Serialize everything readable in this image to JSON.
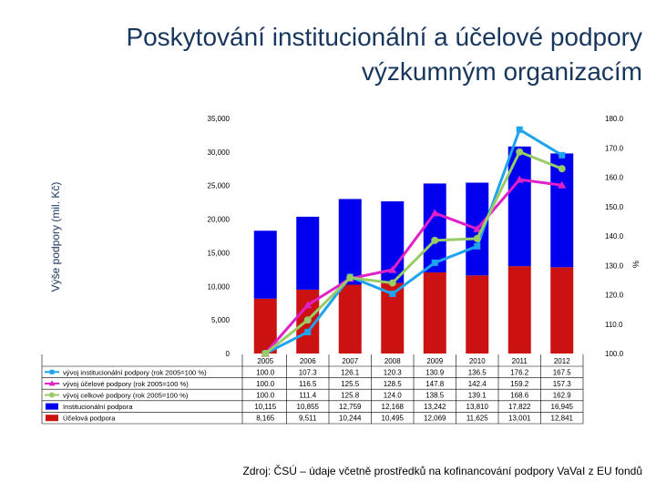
{
  "title": {
    "line1": "Poskytování institucionální a účelové podpory",
    "line2": "výzkumným organizacím"
  },
  "source": "Zdroj: ČSÚ – údaje včetně prostředků na kofinancování podpory VaVaI z EU fondů",
  "colors": {
    "institucionalni_bar": "#0000ee",
    "ucelova_bar": "#cc1111",
    "vyvoj_institucionalni": "#1fa3ee",
    "vyvoj_ucelove": "#e020c8",
    "vyvoj_celkove": "#99cc66"
  },
  "chart_data": {
    "type": "bar",
    "stacked": true,
    "categories": [
      "2005",
      "2006",
      "2007",
      "2008",
      "2009",
      "2010",
      "2011",
      "2012"
    ],
    "ylabel": "Výše podpory (mil. Kč)",
    "y2label": "%",
    "ylim": [
      0,
      35000
    ],
    "y2lim": [
      100,
      180
    ],
    "yticks": [
      "0",
      "5,000",
      "10,000",
      "15,000",
      "20,000",
      "25,000",
      "30,000",
      "35,000"
    ],
    "y2ticks": [
      "100.0",
      "110.0",
      "120.0",
      "130.0",
      "140.0",
      "150.0",
      "160.0",
      "170.0",
      "180.0"
    ],
    "grid": false,
    "legend": "data table below plot",
    "bar_series": [
      {
        "name": "Účelová podpora",
        "color": "#cc1111",
        "labels": [
          "8,165",
          "9,511",
          "10,244",
          "10,495",
          "12,069",
          "11,625",
          "13,001",
          "12,841"
        ],
        "values": [
          8165,
          9511,
          10244,
          10495,
          12069,
          11625,
          13001,
          12841
        ]
      },
      {
        "name": "Institucionální podpora",
        "color": "#0000ee",
        "labels": [
          "10,115",
          "10,855",
          "12,759",
          "12,168",
          "13,242",
          "13,810",
          "17,822",
          "16,945"
        ],
        "values": [
          10115,
          10855,
          12759,
          12168,
          13242,
          13810,
          17822,
          16945
        ]
      }
    ],
    "line_series": [
      {
        "name": "vývoj institucionální podpory (rok 2005=100 %)",
        "color": "#1fa3ee",
        "marker": "square",
        "labels": [
          "100.0",
          "107.3",
          "126.1",
          "120.3",
          "130.9",
          "136.5",
          "176.2",
          "167.5"
        ],
        "values": [
          100.0,
          107.3,
          126.1,
          120.3,
          130.9,
          136.5,
          176.2,
          167.5
        ]
      },
      {
        "name": "vývoj účelové podpory (rok 2005=100 %)",
        "color": "#e020c8",
        "marker": "triangle",
        "labels": [
          "100.0",
          "116.5",
          "125.5",
          "128.5",
          "147.8",
          "142.4",
          "159.2",
          "157.3"
        ],
        "values": [
          100.0,
          116.5,
          125.5,
          128.5,
          147.8,
          142.4,
          159.2,
          157.3
        ]
      },
      {
        "name": "vývoj celkové podpory (rok 2005=100 %)",
        "color": "#99cc66",
        "marker": "circle",
        "labels": [
          "100.0",
          "111.4",
          "125.8",
          "124.0",
          "138.5",
          "139.1",
          "168.6",
          "162.9"
        ],
        "values": [
          100.0,
          111.4,
          125.8,
          124.0,
          138.5,
          139.1,
          168.6,
          162.9
        ]
      }
    ]
  }
}
